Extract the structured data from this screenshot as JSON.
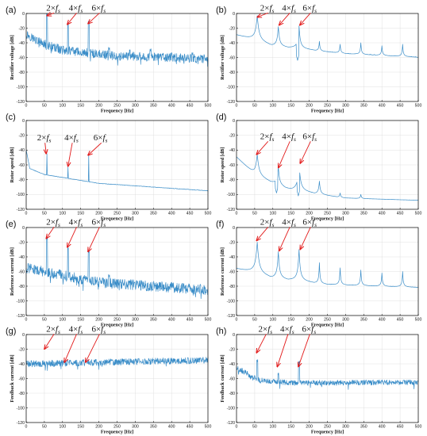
{
  "chart_data": [
    {
      "panel": "(a)",
      "type": "line",
      "ylabel": "Rectifier voltage [dB]",
      "xlabel": "Frequency [Hz]",
      "xlim": [
        0,
        500
      ],
      "ylim": [
        -120,
        0
      ],
      "xticks": [
        0,
        50,
        100,
        150,
        200,
        250,
        300,
        350,
        400,
        450,
        500
      ],
      "yticks": [
        0,
        -20,
        -40,
        -60,
        -80,
        -100,
        -120
      ],
      "series": [
        {
          "style": "noisy",
          "base": [
            [
              0,
              -28
            ],
            [
              40,
              -40
            ],
            [
              100,
              -50
            ],
            [
              250,
              -58
            ],
            [
              500,
              -62
            ]
          ],
          "noise": 12,
          "peaks": [
            [
              57,
              -3
            ],
            [
              115,
              -15
            ],
            [
              172,
              -14
            ],
            [
              228,
              -50
            ],
            [
              285,
              -52
            ],
            [
              342,
              -52
            ],
            [
              400,
              -56
            ],
            [
              457,
              -57
            ]
          ]
        }
      ],
      "annotations": [
        {
          "prefix": "2×",
          "var": "f",
          "sub": "s",
          "x": 55,
          "y": 4,
          "tx": 57,
          "ty": -3
        },
        {
          "prefix": "4×",
          "var": "f",
          "sub": "s",
          "x": 117,
          "y": 4,
          "tx": 113,
          "ty": -15
        },
        {
          "prefix": "6×",
          "var": "f",
          "sub": "s",
          "x": 180,
          "y": 4,
          "tx": 170,
          "ty": -14
        }
      ]
    },
    {
      "panel": "(b)",
      "type": "line",
      "ylabel": "Rectifier voltage [dB]",
      "xlabel": "Frequency [Hz]",
      "xlim": [
        0,
        500
      ],
      "ylim": [
        -120,
        0
      ],
      "xticks": [
        0,
        50,
        100,
        150,
        200,
        250,
        300,
        350,
        400,
        450,
        500
      ],
      "yticks": [
        0,
        -20,
        -40,
        -60,
        -80,
        -100,
        -120
      ],
      "series": [
        {
          "style": "peaky",
          "base": [
            [
              0,
              -30
            ],
            [
              100,
              -45
            ],
            [
              300,
              -55
            ],
            [
              500,
              -60
            ]
          ],
          "noise": 2,
          "peaks": [
            [
              57,
              -3,
              12
            ],
            [
              115,
              -18,
              8
            ],
            [
              172,
              -17,
              8
            ],
            [
              228,
              -38,
              4
            ],
            [
              285,
              -42,
              4
            ],
            [
              342,
              -40,
              4
            ],
            [
              400,
              -44,
              4
            ],
            [
              457,
              -42,
              4
            ]
          ],
          "dips": [
            [
              168,
              -64
            ]
          ]
        }
      ],
      "annotations": [
        {
          "prefix": "2×",
          "var": "f",
          "sub": "s",
          "x": 65,
          "y": 4,
          "tx": 57,
          "ty": -5
        },
        {
          "prefix": "4×",
          "var": "f",
          "sub": "s",
          "x": 125,
          "y": 4,
          "tx": 117,
          "ty": -16
        },
        {
          "prefix": "6×",
          "var": "f",
          "sub": "s",
          "x": 182,
          "y": 4,
          "tx": 174,
          "ty": -16
        }
      ]
    },
    {
      "panel": "(c)",
      "type": "line",
      "ylabel": "Rotor speed [dB]",
      "xlabel": "Frequency [Hz]",
      "xlim": [
        0,
        500
      ],
      "ylim": [
        -120,
        0
      ],
      "xticks": [
        0,
        50,
        100,
        150,
        200,
        250,
        300,
        350,
        400,
        450,
        500
      ],
      "yticks": [
        0,
        -20,
        -40,
        -60,
        -80,
        -100,
        -120
      ],
      "series": [
        {
          "style": "smooth",
          "base": [
            [
              0,
              -40
            ],
            [
              10,
              -65
            ],
            [
              50,
              -73
            ],
            [
              200,
              -85
            ],
            [
              500,
              -95
            ]
          ],
          "noise": 0.6,
          "peaks": [
            [
              57,
              -45,
              1
            ],
            [
              115,
              -63,
              1
            ],
            [
              172,
              -47,
              1
            ],
            [
              280,
              -89,
              1
            ]
          ]
        }
      ],
      "annotations": [
        {
          "prefix": "2×",
          "var": "f",
          "sub": "s",
          "x": 30,
          "y": -27,
          "tx": 55,
          "ty": -45
        },
        {
          "prefix": "4×",
          "var": "f",
          "sub": "s",
          "x": 105,
          "y": -27,
          "tx": 115,
          "ty": -62
        },
        {
          "prefix": "6×",
          "var": "f",
          "sub": "s",
          "x": 185,
          "y": -27,
          "tx": 170,
          "ty": -47
        }
      ]
    },
    {
      "panel": "(d)",
      "type": "line",
      "ylabel": "Rotor speed [dB]",
      "xlabel": "Frequency [Hz]",
      "xlim": [
        0,
        500
      ],
      "ylim": [
        -120,
        0
      ],
      "xticks": [
        0,
        50,
        100,
        150,
        200,
        250,
        300,
        350,
        400,
        450,
        500
      ],
      "yticks": [
        0,
        -20,
        -40,
        -60,
        -80,
        -100,
        -120
      ],
      "series": [
        {
          "style": "peaky",
          "base": [
            [
              0,
              -50
            ],
            [
              50,
              -75
            ],
            [
              150,
              -95
            ],
            [
              300,
              -105
            ],
            [
              500,
              -108
            ]
          ],
          "noise": 0.6,
          "peaks": [
            [
              57,
              -46,
              12
            ],
            [
              115,
              -63,
              8
            ],
            [
              172,
              -58,
              10
            ],
            [
              228,
              -82,
              6
            ],
            [
              285,
              -98,
              4
            ],
            [
              342,
              -100,
              4
            ],
            [
              400,
              -110,
              4
            ],
            [
              457,
              -112,
              4
            ]
          ],
          "dips": [
            [
              110,
              -98
            ],
            [
              170,
              -102
            ]
          ]
        }
      ],
      "annotations": [
        {
          "prefix": "2×",
          "var": "f",
          "sub": "s",
          "x": 65,
          "y": -25,
          "tx": 55,
          "ty": -46
        },
        {
          "prefix": "4×",
          "var": "f",
          "sub": "s",
          "x": 125,
          "y": -25,
          "tx": 115,
          "ty": -64
        },
        {
          "prefix": "6×",
          "var": "f",
          "sub": "s",
          "x": 182,
          "y": -25,
          "tx": 175,
          "ty": -58
        }
      ]
    },
    {
      "panel": "(e)",
      "type": "line",
      "ylabel": "Reference current [dB]",
      "xlabel": "Frequency [Hz]",
      "xlim": [
        0,
        500
      ],
      "ylim": [
        -120,
        0
      ],
      "xticks": [
        0,
        50,
        100,
        150,
        200,
        250,
        300,
        350,
        400,
        450,
        500
      ],
      "yticks": [
        0,
        -20,
        -40,
        -60,
        -80,
        -100,
        -120
      ],
      "series": [
        {
          "style": "noisy",
          "base": [
            [
              0,
              -55
            ],
            [
              200,
              -75
            ],
            [
              500,
              -85
            ]
          ],
          "noise": 14,
          "peaks": [
            [
              57,
              -17
            ],
            [
              115,
              -30
            ],
            [
              172,
              -35
            ],
            [
              228,
              -68
            ],
            [
              285,
              -75
            ]
          ]
        }
      ],
      "annotations": [
        {
          "prefix": "2×",
          "var": "f",
          "sub": "s",
          "x": 55,
          "y": 4,
          "tx": 55,
          "ty": -15
        },
        {
          "prefix": "4×",
          "var": "f",
          "sub": "s",
          "x": 117,
          "y": 4,
          "tx": 113,
          "ty": -27
        },
        {
          "prefix": "6×",
          "var": "f",
          "sub": "s",
          "x": 180,
          "y": 4,
          "tx": 170,
          "ty": -33
        }
      ]
    },
    {
      "panel": "(f)",
      "type": "line",
      "ylabel": "Reference current [dB]",
      "xlabel": "Frequency [Hz]",
      "xlim": [
        0,
        500
      ],
      "ylim": [
        -120,
        0
      ],
      "xticks": [
        0,
        50,
        100,
        150,
        200,
        250,
        300,
        350,
        400,
        450,
        500
      ],
      "yticks": [
        0,
        -20,
        -40,
        -60,
        -80,
        -100,
        -120
      ],
      "series": [
        {
          "style": "peaky",
          "base": [
            [
              0,
              -57
            ],
            [
              100,
              -70
            ],
            [
              250,
              -78
            ],
            [
              500,
              -82
            ]
          ],
          "noise": 2,
          "peaks": [
            [
              57,
              -20,
              12
            ],
            [
              115,
              -33,
              8
            ],
            [
              172,
              -30,
              8
            ],
            [
              228,
              -48,
              4
            ],
            [
              285,
              -55,
              4
            ],
            [
              342,
              -58,
              4
            ],
            [
              400,
              -62,
              4
            ],
            [
              457,
              -60,
              4
            ]
          ]
        }
      ],
      "annotations": [
        {
          "prefix": "2×",
          "var": "f",
          "sub": "s",
          "x": 65,
          "y": 4,
          "tx": 55,
          "ty": -18
        },
        {
          "prefix": "4×",
          "var": "f",
          "sub": "s",
          "x": 125,
          "y": 4,
          "tx": 117,
          "ty": -32
        },
        {
          "prefix": "6×",
          "var": "f",
          "sub": "s",
          "x": 182,
          "y": 4,
          "tx": 175,
          "ty": -30
        }
      ]
    },
    {
      "panel": "(g)",
      "type": "line",
      "ylabel": "Feedback current [dB]",
      "xlabel": "Frequency [Hz]",
      "xlim": [
        0,
        500
      ],
      "ylim": [
        -120,
        0
      ],
      "xticks": [
        0,
        50,
        100,
        150,
        200,
        250,
        300,
        350,
        400,
        450,
        500
      ],
      "yticks": [
        0,
        -20,
        -40,
        -60,
        -80,
        -100,
        -120
      ],
      "series": [
        {
          "style": "noisy",
          "base": [
            [
              0,
              -40
            ],
            [
              500,
              -35
            ]
          ],
          "noise": 9,
          "peaks": []
        }
      ],
      "annotations": [
        {
          "prefix": "2×",
          "var": "f",
          "sub": "s",
          "x": 55,
          "y": 4,
          "tx": 50,
          "ty": -20
        },
        {
          "prefix": "4×",
          "var": "f",
          "sub": "s",
          "x": 117,
          "y": 4,
          "tx": 105,
          "ty": -38
        },
        {
          "prefix": "6×",
          "var": "f",
          "sub": "s",
          "x": 180,
          "y": 4,
          "tx": 163,
          "ty": -38
        }
      ]
    },
    {
      "panel": "(h)",
      "type": "line",
      "ylabel": "Feedback current [dB]",
      "xlabel": "Frequency [Hz]",
      "xlim": [
        0,
        500
      ],
      "ylim": [
        -120,
        0
      ],
      "xticks": [
        0,
        50,
        100,
        150,
        200,
        250,
        300,
        350,
        400,
        450,
        500
      ],
      "yticks": [
        0,
        -20,
        -40,
        -60,
        -80,
        -100,
        -120
      ],
      "series": [
        {
          "style": "noisy",
          "base": [
            [
              0,
              -45
            ],
            [
              60,
              -62
            ],
            [
              150,
              -66
            ],
            [
              500,
              -65
            ]
          ],
          "noise": 7,
          "peaks": [
            [
              57,
              -38
            ],
            [
              115,
              -55
            ],
            [
              172,
              -40
            ]
          ]
        }
      ],
      "annotations": [
        {
          "prefix": "2×",
          "var": "f",
          "sub": "s",
          "x": 60,
          "y": 4,
          "tx": 55,
          "ty": -25
        },
        {
          "prefix": "4×",
          "var": "f",
          "sub": "s",
          "x": 120,
          "y": 4,
          "tx": 112,
          "ty": -44
        },
        {
          "prefix": "6×",
          "var": "f",
          "sub": "s",
          "x": 180,
          "y": 4,
          "tx": 170,
          "ty": -44
        }
      ]
    }
  ],
  "colors": {
    "line": "#3a8dc8",
    "arrow": "#e21a1a",
    "axis": "#000000",
    "grid": "#d9d9d9"
  }
}
